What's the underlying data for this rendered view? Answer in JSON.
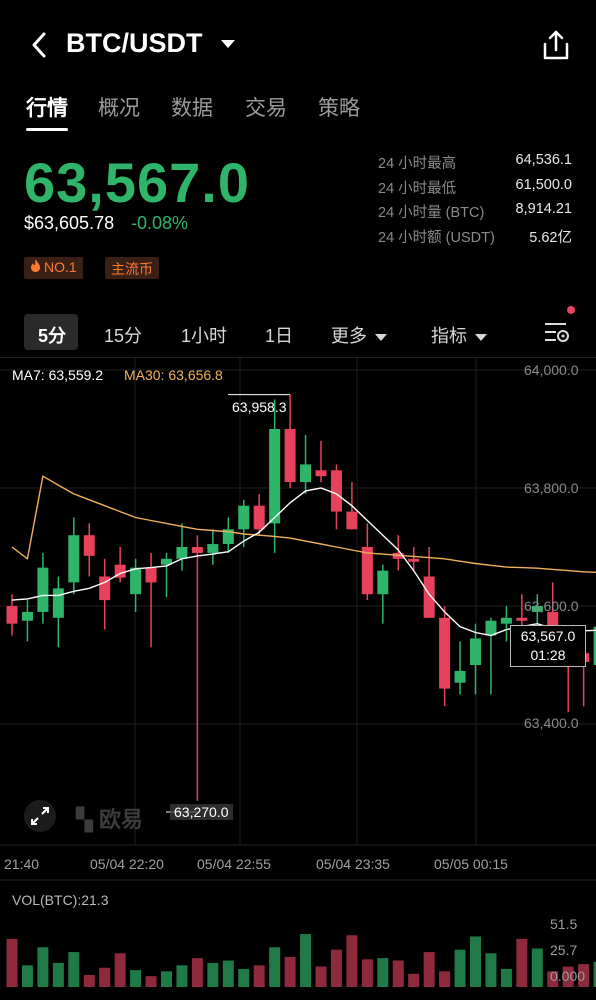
{
  "header": {
    "pair": "BTC/USDT",
    "back_icon": "chevron-left-icon",
    "share_icon": "share-icon"
  },
  "tabs": [
    {
      "label": "行情",
      "active": true
    },
    {
      "label": "概况",
      "active": false
    },
    {
      "label": "数据",
      "active": false
    },
    {
      "label": "交易",
      "active": false
    },
    {
      "label": "策略",
      "active": false
    }
  ],
  "ticker": {
    "last_price": "63,567.0",
    "usd_price": "$63,605.78",
    "change": "-0.08%",
    "badges": {
      "rank": "NO.1",
      "category": "主流币"
    }
  },
  "stats": [
    {
      "label": "24 小时最高",
      "value": "64,536.1"
    },
    {
      "label": "24 小时最低",
      "value": "61,500.0"
    },
    {
      "label": "24 小时量 (BTC)",
      "value": "8,914.21"
    },
    {
      "label": "24 小时额 (USDT)",
      "value": "5.62亿"
    }
  ],
  "intervals": {
    "i5": "5分",
    "i15": "15分",
    "i1h": "1小时",
    "i1d": "1日",
    "more": "更多",
    "indicators": "指标"
  },
  "indicators": {
    "ma7": "MA7: 63,559.2",
    "ma30": "MA30: 63,656.8"
  },
  "colors": {
    "up": "#2eb56a",
    "down": "#e8415c",
    "ma30": "#f0b15a",
    "ma7": "#ffffff"
  },
  "chart_data": {
    "type": "candlestick",
    "y_axis": {
      "min": 63200,
      "max": 64050,
      "ticks": [
        "64,000.0",
        "63,800.0",
        "63,600.0",
        "63,400.0"
      ]
    },
    "x_ticks": [
      "21:40",
      "05/04 22:20",
      "05/04 22:55",
      "05/04 23:35",
      "05/05 00:15"
    ],
    "annotations": {
      "high": "63,958.3",
      "low": "63,270.0"
    },
    "current": {
      "price": "63,567.0",
      "countdown": "01:28"
    },
    "candles": [
      [
        63600,
        63620,
        63550,
        63570
      ],
      [
        63575,
        63610,
        63540,
        63590
      ],
      [
        63590,
        63690,
        63570,
        63665
      ],
      [
        63580,
        63650,
        63530,
        63630
      ],
      [
        63640,
        63750,
        63620,
        63720
      ],
      [
        63720,
        63740,
        63650,
        63685
      ],
      [
        63650,
        63680,
        63560,
        63610
      ],
      [
        63670,
        63700,
        63640,
        63648
      ],
      [
        63620,
        63680,
        63590,
        63665
      ],
      [
        63665,
        63690,
        63530,
        63640
      ],
      [
        63670,
        63690,
        63615,
        63680
      ],
      [
        63680,
        63740,
        63660,
        63700
      ],
      [
        63700,
        63720,
        63270,
        63690
      ],
      [
        63690,
        63730,
        63670,
        63705
      ],
      [
        63705,
        63750,
        63690,
        63730
      ],
      [
        63730,
        63780,
        63700,
        63770
      ],
      [
        63770,
        63790,
        63720,
        63730
      ],
      [
        63740,
        63950,
        63690,
        63900
      ],
      [
        63900,
        63958,
        63800,
        63810
      ],
      [
        63810,
        63890,
        63790,
        63840
      ],
      [
        63830,
        63880,
        63810,
        63820
      ],
      [
        63830,
        63840,
        63730,
        63760
      ],
      [
        63760,
        63810,
        63730,
        63730
      ],
      [
        63700,
        63740,
        63610,
        63620
      ],
      [
        63620,
        63670,
        63570,
        63660
      ],
      [
        63690,
        63720,
        63660,
        63680
      ],
      [
        63680,
        63700,
        63660,
        63675
      ],
      [
        63650,
        63700,
        63580,
        63580
      ],
      [
        63580,
        63600,
        63430,
        63460
      ],
      [
        63470,
        63540,
        63450,
        63490
      ],
      [
        63500,
        63570,
        63450,
        63545
      ],
      [
        63550,
        63580,
        63450,
        63575
      ],
      [
        63570,
        63600,
        63540,
        63580
      ],
      [
        63580,
        63620,
        63560,
        63575
      ],
      [
        63590,
        63620,
        63560,
        63600
      ],
      [
        63590,
        63640,
        63520,
        63520
      ],
      [
        63530,
        63560,
        63420,
        63515
      ],
      [
        63520,
        63560,
        63430,
        63505
      ],
      [
        63500,
        63590,
        63480,
        63565
      ]
    ],
    "ma7": [
      63610,
      63612,
      63618,
      63618,
      63625,
      63630,
      63640,
      63655,
      63663,
      63665,
      63668,
      63680,
      63685,
      63688,
      63692,
      63710,
      63725,
      63750,
      63775,
      63795,
      63800,
      63790,
      63770,
      63745,
      63720,
      63695,
      63660,
      63620,
      63590,
      63565,
      63555,
      63550,
      63560,
      63565,
      63570,
      63562,
      63560,
      63558,
      63559
    ],
    "ma30": [
      63860,
      63840,
      63820,
      63805,
      63790,
      63780,
      63770,
      63760,
      63750,
      63745,
      63740,
      63735,
      63730,
      63728,
      63726,
      63722,
      63720,
      63718,
      63715,
      63710,
      63705,
      63700,
      63695,
      63690,
      63688,
      63686,
      63684,
      63682,
      63680,
      63676,
      63672,
      63669,
      63666,
      63665,
      63664,
      63662,
      63660,
      63658,
      63657
    ],
    "volume": {
      "label": "VOL(BTC):21.3",
      "ticks": [
        "51.5",
        "25.7",
        "0.000"
      ],
      "max": 51.5,
      "values": [
        40,
        18,
        33,
        20,
        29,
        10,
        16,
        28,
        14,
        9,
        13,
        18,
        24,
        20,
        22,
        15,
        18,
        33,
        25,
        44,
        17,
        31,
        43,
        23,
        24,
        22,
        11,
        29,
        13,
        31,
        42,
        28,
        15,
        40,
        32,
        13,
        17,
        19,
        21
      ]
    }
  },
  "watermark": "欧易"
}
